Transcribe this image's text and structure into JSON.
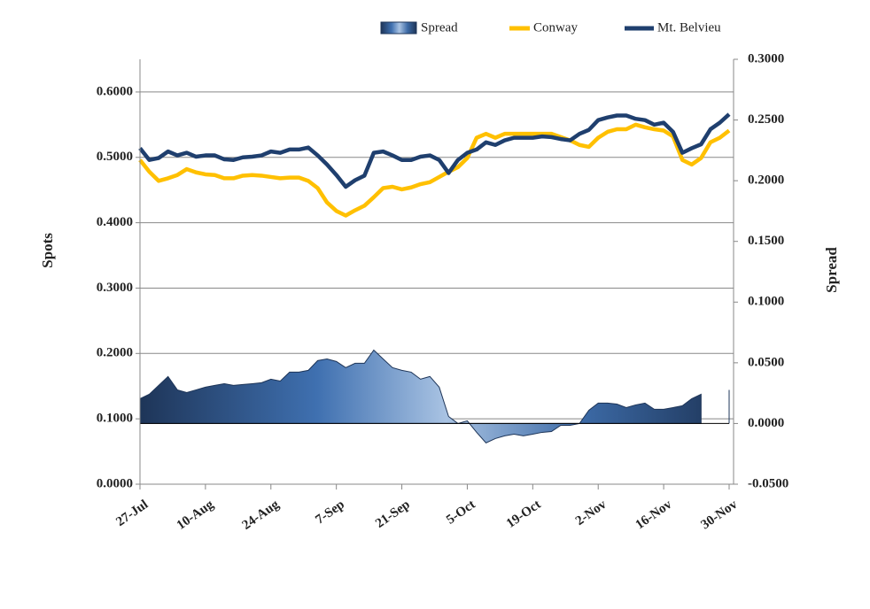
{
  "chart_data": {
    "type": "line",
    "categories": [
      "27-Jul",
      null,
      null,
      null,
      null,
      null,
      null,
      "10-Aug",
      null,
      null,
      null,
      null,
      null,
      null,
      "24-Aug",
      null,
      null,
      null,
      null,
      null,
      null,
      "7-Sep",
      null,
      null,
      null,
      null,
      null,
      null,
      "21-Sep",
      null,
      null,
      null,
      null,
      null,
      null,
      "5-Oct",
      null,
      null,
      null,
      null,
      null,
      null,
      "19-Oct",
      null,
      null,
      null,
      null,
      null,
      null,
      "2-Nov",
      null,
      null,
      null,
      null,
      null,
      null,
      "16-Nov",
      null,
      null,
      null,
      null,
      null,
      null,
      "30-Nov"
    ],
    "y_label": "Spots",
    "y2_label": "Spread",
    "ylim": [
      0,
      0.65
    ],
    "yticks": [
      {
        "value": 0,
        "label": "0.0000"
      },
      {
        "value": 0.1,
        "label": "0.1000"
      },
      {
        "value": 0.2,
        "label": "0.2000"
      },
      {
        "value": 0.3,
        "label": "0.3000"
      },
      {
        "value": 0.4,
        "label": "0.4000"
      },
      {
        "value": 0.5,
        "label": "0.5000"
      },
      {
        "value": 0.6,
        "label": "0.6000"
      }
    ],
    "y2lim": [
      -0.05,
      0.3
    ],
    "y2ticks": [
      {
        "value": -0.05,
        "label": "-0.0500"
      },
      {
        "value": 0,
        "label": "0.0000"
      },
      {
        "value": 0.05,
        "label": "0.0500"
      },
      {
        "value": 0.1,
        "label": "0.1000"
      },
      {
        "value": 0.15,
        "label": "0.1500"
      },
      {
        "value": 0.2,
        "label": "0.2000"
      },
      {
        "value": 0.25,
        "label": "0.2500"
      },
      {
        "value": 0.3,
        "label": "0.3000"
      }
    ],
    "grid": true,
    "legend": "top",
    "series": [
      {
        "name": "Spread",
        "type": "area",
        "axis": "y2",
        "color": "#2f5a8f",
        "values": [
          0.0204,
          0.0241,
          0.0314,
          0.0387,
          0.0277,
          0.0255,
          0.0277,
          0.0299,
          0.0314,
          0.0328,
          0.0314,
          0.0321,
          0.0328,
          0.0336,
          0.0365,
          0.035,
          0.0423,
          0.0423,
          0.0438,
          0.0518,
          0.0532,
          0.0511,
          0.046,
          0.0496,
          0.0496,
          0.0605,
          0.0532,
          0.046,
          0.0438,
          0.0423,
          0.0365,
          0.0387,
          0.0299,
          0.0058,
          0,
          0.0022,
          -0.0073,
          -0.016,
          -0.0124,
          -0.0102,
          -0.0088,
          -0.0102,
          -0.0088,
          -0.0073,
          -0.0066,
          -0.0015,
          -0.0015,
          0,
          0.0109,
          0.0168,
          0.0168,
          0.016,
          0.0131,
          0.0153,
          0.0168,
          0.0117,
          0.0117,
          0.0131,
          0.0146,
          0.0204,
          0.0241,
          null,
          null,
          0.0277
        ]
      },
      {
        "name": "Conway",
        "type": "line",
        "color": "#ffc000",
        "values": [
          0.496,
          0.478,
          0.464,
          0.468,
          0.473,
          0.482,
          0.477,
          0.474,
          0.473,
          0.468,
          0.468,
          0.472,
          0.473,
          0.472,
          0.47,
          0.468,
          0.469,
          0.469,
          0.464,
          0.453,
          0.431,
          0.418,
          0.411,
          0.419,
          0.426,
          0.439,
          0.453,
          0.455,
          0.451,
          0.454,
          0.459,
          0.462,
          0.47,
          0.478,
          0.485,
          0.499,
          0.53,
          0.536,
          0.53,
          0.536,
          0.536,
          0.536,
          0.536,
          0.536,
          0.536,
          0.531,
          0.526,
          0.519,
          0.516,
          0.53,
          0.539,
          0.543,
          0.543,
          0.55,
          0.546,
          0.543,
          0.541,
          0.532,
          0.496,
          0.489,
          0.499,
          0.523,
          0.53,
          0.541
        ]
      },
      {
        "name": "Mt. Belvieu",
        "type": "line",
        "color": "#1f3f6e",
        "values": [
          0.514,
          0.496,
          0.499,
          0.509,
          0.503,
          0.507,
          0.501,
          0.503,
          0.503,
          0.497,
          0.496,
          0.5,
          0.501,
          0.503,
          0.509,
          0.507,
          0.512,
          0.512,
          0.515,
          0.503,
          0.489,
          0.473,
          0.455,
          0.465,
          0.472,
          0.507,
          0.509,
          0.503,
          0.496,
          0.496,
          0.501,
          0.503,
          0.496,
          0.476,
          0.496,
          0.507,
          0.512,
          0.523,
          0.519,
          0.526,
          0.53,
          0.53,
          0.53,
          0.532,
          0.531,
          0.528,
          0.526,
          0.536,
          0.542,
          0.557,
          0.561,
          0.564,
          0.564,
          0.559,
          0.557,
          0.55,
          0.553,
          0.539,
          0.507,
          0.514,
          0.52,
          0.543,
          0.553,
          0.566
        ]
      }
    ]
  }
}
